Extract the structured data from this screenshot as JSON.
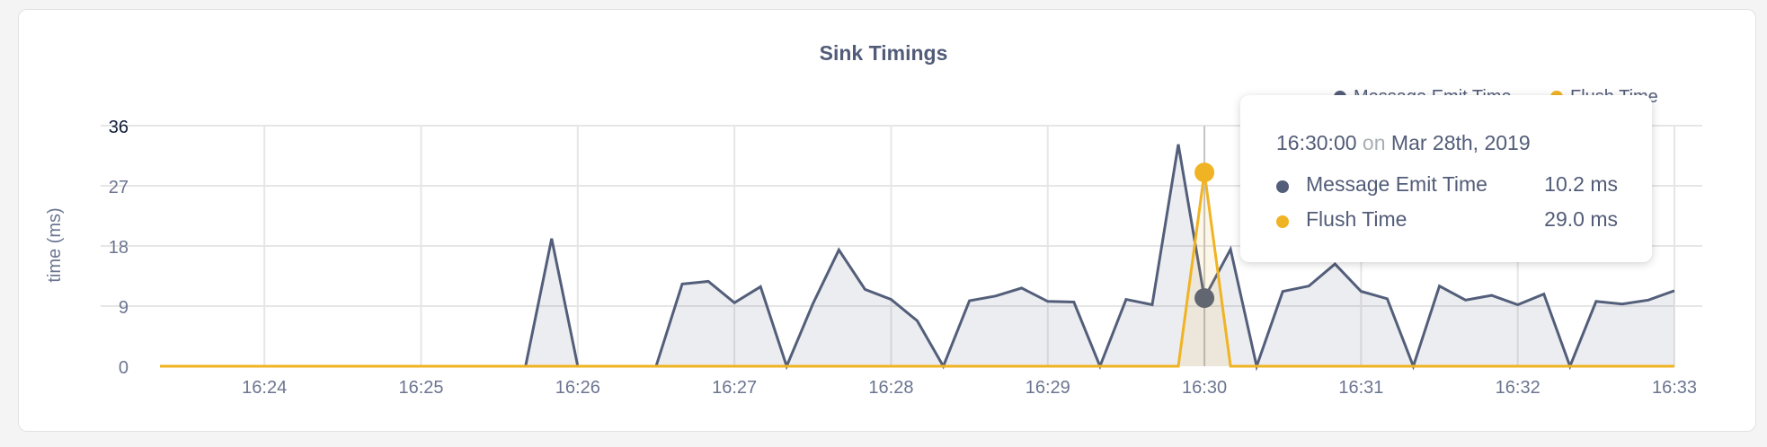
{
  "chart_data": {
    "type": "area",
    "title": "Sink Timings",
    "xlabel": "",
    "ylabel": "time (ms)",
    "ylim": [
      0,
      36
    ],
    "yticks": [
      "0",
      "9",
      "18",
      "27",
      "36"
    ],
    "xticks": [
      "16:24",
      "16:25",
      "16:26",
      "16:27",
      "16:28",
      "16:29",
      "16:30",
      "16:31",
      "16:32",
      "16:33"
    ],
    "grid": true,
    "legend_placement": "top-right",
    "x": [
      "16:23:20",
      "16:23:30",
      "16:23:40",
      "16:23:50",
      "16:24:00",
      "16:24:10",
      "16:24:20",
      "16:24:30",
      "16:24:40",
      "16:24:50",
      "16:25:00",
      "16:25:10",
      "16:25:20",
      "16:25:30",
      "16:25:40",
      "16:25:50",
      "16:26:00",
      "16:26:10",
      "16:26:20",
      "16:26:30",
      "16:26:40",
      "16:26:50",
      "16:27:00",
      "16:27:10",
      "16:27:20",
      "16:27:30",
      "16:27:40",
      "16:27:50",
      "16:28:00",
      "16:28:10",
      "16:28:20",
      "16:28:30",
      "16:28:40",
      "16:28:50",
      "16:29:00",
      "16:29:10",
      "16:29:20",
      "16:29:30",
      "16:29:40",
      "16:29:50",
      "16:30:00",
      "16:30:10",
      "16:30:20",
      "16:30:30",
      "16:30:40",
      "16:30:50",
      "16:31:00",
      "16:31:10",
      "16:31:20",
      "16:31:30",
      "16:31:40",
      "16:31:50",
      "16:32:00",
      "16:32:10",
      "16:32:20",
      "16:32:30",
      "16:32:40",
      "16:32:50",
      "16:33:00"
    ],
    "series": [
      {
        "name": "Message Emit Time",
        "color": "#535e7a",
        "values": [
          0,
          0,
          0,
          0,
          0,
          0,
          0,
          0,
          0,
          0,
          0,
          0,
          0,
          0,
          0,
          19.1,
          0,
          0,
          0,
          0,
          12.3,
          12.7,
          9.5,
          11.9,
          0,
          9.3,
          17.4,
          11.5,
          10,
          6.8,
          0,
          9.8,
          10.5,
          11.7,
          9.7,
          9.6,
          0,
          10,
          9.2,
          33.2,
          10.2,
          17.5,
          0,
          11.2,
          12,
          15.3,
          11.2,
          10.1,
          0,
          12,
          9.9,
          10.6,
          9.2,
          10.8,
          0,
          9.7,
          9.3,
          9.9,
          11.3
        ]
      },
      {
        "name": "Flush Time",
        "color": "#f0b323",
        "values": [
          0,
          0,
          0,
          0,
          0,
          0,
          0,
          0,
          0,
          0,
          0,
          0,
          0,
          0,
          0,
          0,
          0,
          0,
          0,
          0,
          0,
          0,
          0,
          0,
          0,
          0,
          0,
          0,
          0,
          0,
          0,
          0,
          0,
          0,
          0,
          0,
          0,
          0,
          0,
          0,
          29.0,
          0,
          0,
          0,
          0,
          0,
          0,
          0,
          0,
          0,
          0,
          0,
          0,
          0,
          0,
          0,
          0,
          0,
          0
        ]
      }
    ],
    "hover": {
      "x": "16:30:00",
      "time": "16:30:00",
      "on": "on",
      "date": "Mar 28th, 2019",
      "rows": [
        {
          "label": "Message Emit Time",
          "value": "10.2 ms"
        },
        {
          "label": "Flush Time",
          "value": "29.0 ms"
        }
      ]
    }
  }
}
